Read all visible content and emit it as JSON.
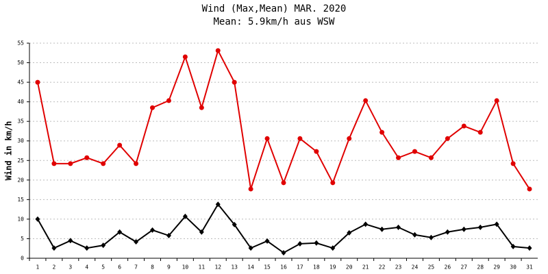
{
  "chart_data": {
    "type": "line",
    "title": "Wind (Max,Mean) MAR. 2020",
    "subtitle": "Mean: 5.9km/h aus WSW",
    "y_label": "Wind in km/h",
    "categories": [
      "1",
      "2",
      "3",
      "4",
      "5",
      "6",
      "7",
      "8",
      "9",
      "10",
      "11",
      "12",
      "13",
      "14",
      "15",
      "16",
      "17",
      "18",
      "19",
      "20",
      "21",
      "22",
      "23",
      "24",
      "25",
      "26",
      "27",
      "28",
      "29",
      "30",
      "31"
    ],
    "series": [
      {
        "color": "#e00000",
        "marker": "circle",
        "values": [
          45.0,
          24.2,
          24.2,
          25.7,
          24.2,
          28.9,
          24.2,
          38.5,
          40.3,
          51.5,
          38.5,
          53.1,
          45.0,
          17.7,
          30.6,
          19.3,
          30.6,
          27.3,
          19.3,
          30.6,
          40.3,
          32.2,
          25.7,
          27.3,
          25.7,
          30.6,
          33.8,
          32.2,
          40.3,
          24.2,
          17.7
        ]
      },
      {
        "color": "#000000",
        "marker": "diamond",
        "values": [
          10.0,
          2.6,
          4.5,
          2.6,
          3.3,
          6.7,
          4.2,
          7.2,
          5.8,
          10.7,
          6.7,
          13.8,
          8.6,
          2.6,
          4.4,
          1.4,
          3.7,
          3.9,
          2.6,
          6.5,
          8.7,
          7.4,
          7.9,
          6.0,
          5.3,
          6.7,
          7.4,
          7.9,
          8.7,
          3.0,
          2.6
        ]
      }
    ],
    "ylim": [
      0,
      55
    ],
    "yticks": [
      0,
      5,
      10,
      15,
      20,
      25,
      30,
      35,
      40,
      45,
      50,
      55
    ],
    "grid": true
  }
}
